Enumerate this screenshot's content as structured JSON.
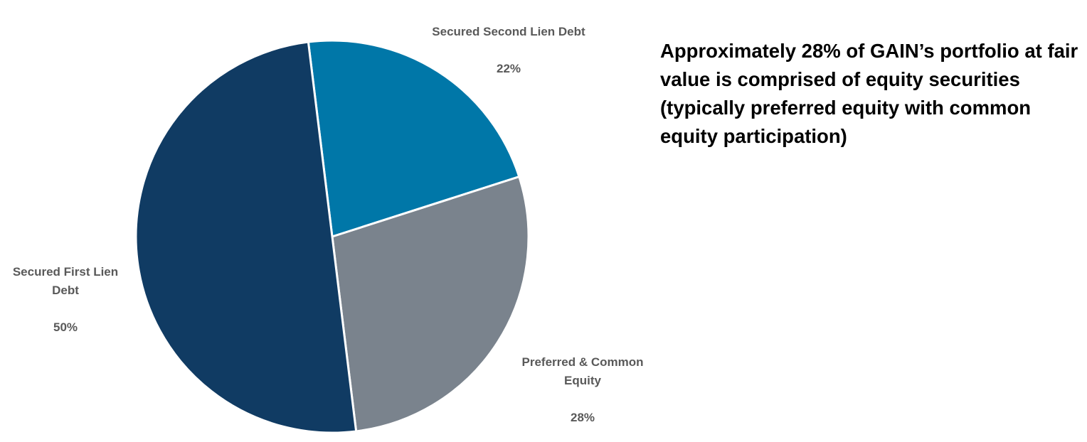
{
  "chart_data": {
    "type": "pie",
    "title": "",
    "start_angle_deg": -7,
    "direction": "clockwise",
    "slices": [
      {
        "category": "Secured Second Lien Debt",
        "value": 22,
        "value_label": "22%",
        "color": "#0077A8"
      },
      {
        "category": "Preferred & Common Equity",
        "value": 28,
        "value_label": "28%",
        "color": "#7A838D"
      },
      {
        "category": "Secured First Lien Debt",
        "value": 50,
        "value_label": "50%",
        "color": "#103B63"
      }
    ],
    "slice_border_color": "#FFFFFF",
    "label_color": "#595959"
  },
  "callout": {
    "text": "Approximately 28% of GAIN’s portfolio at fair value is comprised of equity securities (typically preferred equity with common equity participation)"
  }
}
